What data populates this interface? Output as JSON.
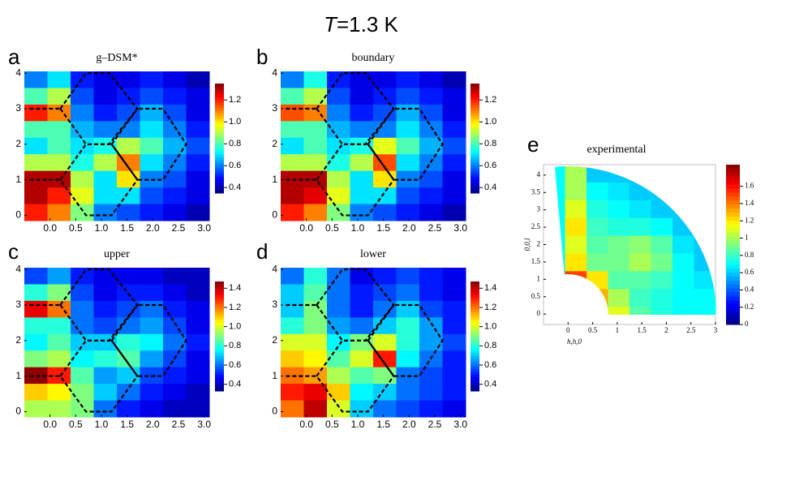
{
  "figure_title": {
    "italic": "T",
    "text": "=1.3 K"
  },
  "chart_data": [
    {
      "type": "heatmap",
      "label": "a",
      "title": "g–DSM*",
      "xlim": [
        -0.5,
        3.1
      ],
      "ylim": [
        -0.15,
        4.05
      ],
      "zlim": [
        0.35,
        1.35
      ],
      "xticks": [
        {
          "value": 0,
          "label": "0.0"
        },
        0.5,
        {
          "value": 1,
          "label": "1.0"
        },
        1.5,
        {
          "value": 2,
          "label": "2.0"
        },
        2.5,
        {
          "value": 3,
          "label": "3.0"
        }
      ],
      "yticks": [
        0,
        1,
        2,
        3,
        4
      ],
      "zticks": [
        0.4,
        0.6,
        0.8,
        {
          "value": 1,
          "label": "1.0"
        },
        1.2
      ],
      "z": [
        [
          0.6,
          0.7,
          0.5,
          0.45,
          0.45,
          0.5,
          0.45,
          0.4
        ],
        [
          0.8,
          0.9,
          0.55,
          0.45,
          0.5,
          0.55,
          0.5,
          0.45
        ],
        [
          1.2,
          1.1,
          0.6,
          0.5,
          0.55,
          0.65,
          0.55,
          0.45
        ],
        [
          0.8,
          0.8,
          0.65,
          0.6,
          0.6,
          0.7,
          0.6,
          0.5
        ],
        [
          0.7,
          0.8,
          0.7,
          0.75,
          0.9,
          0.8,
          0.65,
          0.55
        ],
        [
          0.9,
          0.9,
          0.75,
          0.9,
          1.1,
          0.7,
          0.6,
          0.5
        ],
        [
          1.3,
          1.3,
          0.9,
          0.7,
          1.0,
          0.6,
          0.55,
          0.45
        ],
        [
          1.3,
          1.2,
          0.95,
          0.7,
          0.7,
          0.55,
          0.5,
          0.45
        ],
        [
          1.2,
          1.1,
          0.85,
          0.6,
          0.55,
          0.5,
          0.45,
          0.4
        ]
      ]
    },
    {
      "type": "heatmap",
      "label": "b",
      "title": "boundary",
      "xlim": [
        -0.5,
        3.1
      ],
      "ylim": [
        -0.15,
        4.05
      ],
      "zlim": [
        0.35,
        1.35
      ],
      "xticks": [
        {
          "value": 0,
          "label": "0.0"
        },
        0.5,
        {
          "value": 1,
          "label": "1.0"
        },
        1.5,
        {
          "value": 2,
          "label": "2.0"
        },
        2.5,
        {
          "value": 3,
          "label": "3.0"
        }
      ],
      "yticks": [
        0,
        1,
        2,
        3,
        4
      ],
      "zticks": [
        0.4,
        0.6,
        0.8,
        {
          "value": 1,
          "label": "1.0"
        },
        1.2
      ],
      "z": [
        [
          0.6,
          0.75,
          0.5,
          0.45,
          0.45,
          0.5,
          0.45,
          0.4
        ],
        [
          0.8,
          0.9,
          0.55,
          0.45,
          0.5,
          0.55,
          0.5,
          0.45
        ],
        [
          1.15,
          1.1,
          0.6,
          0.5,
          0.55,
          0.65,
          0.55,
          0.45
        ],
        [
          0.8,
          0.8,
          0.65,
          0.6,
          0.6,
          0.7,
          0.6,
          0.5
        ],
        [
          0.7,
          0.8,
          0.7,
          0.75,
          0.95,
          0.8,
          0.65,
          0.55
        ],
        [
          0.9,
          0.9,
          0.75,
          0.9,
          1.15,
          0.7,
          0.6,
          0.5
        ],
        [
          1.3,
          1.3,
          0.9,
          0.7,
          1.0,
          0.6,
          0.55,
          0.45
        ],
        [
          1.3,
          1.25,
          0.95,
          0.7,
          0.7,
          0.55,
          0.5,
          0.45
        ],
        [
          1.2,
          1.1,
          0.85,
          0.6,
          0.55,
          0.5,
          0.45,
          0.4
        ]
      ]
    },
    {
      "type": "heatmap",
      "label": "c",
      "title": "upper",
      "xlim": [
        -0.5,
        3.1
      ],
      "ylim": [
        -0.15,
        4.05
      ],
      "zlim": [
        0.33,
        1.47
      ],
      "xticks": [
        {
          "value": 0,
          "label": "0.0"
        },
        0.5,
        {
          "value": 1,
          "label": "1.0"
        },
        1.5,
        {
          "value": 2,
          "label": "2.0"
        },
        2.5,
        {
          "value": 3,
          "label": "3.0"
        }
      ],
      "yticks": [
        0,
        1,
        2,
        3,
        4
      ],
      "zticks": [
        0.4,
        0.6,
        0.8,
        {
          "value": 1,
          "label": "1.0"
        },
        1.2,
        1.4
      ],
      "z": [
        [
          0.55,
          0.65,
          0.5,
          0.45,
          0.45,
          0.45,
          0.4,
          0.4
        ],
        [
          0.8,
          0.9,
          0.55,
          0.45,
          0.5,
          0.5,
          0.45,
          0.4
        ],
        [
          1.35,
          1.2,
          0.6,
          0.5,
          0.55,
          0.6,
          0.5,
          0.45
        ],
        [
          0.8,
          0.8,
          0.6,
          0.55,
          0.6,
          0.65,
          0.55,
          0.45
        ],
        [
          0.75,
          0.85,
          0.7,
          0.7,
          0.8,
          0.75,
          0.6,
          0.5
        ],
        [
          0.9,
          0.95,
          0.75,
          0.8,
          0.85,
          0.65,
          0.55,
          0.45
        ],
        [
          1.45,
          1.3,
          0.85,
          0.65,
          0.7,
          0.55,
          0.5,
          0.45
        ],
        [
          1.1,
          1.05,
          0.9,
          0.7,
          0.6,
          0.5,
          0.45,
          0.4
        ],
        [
          0.95,
          0.95,
          0.9,
          0.6,
          0.5,
          0.45,
          0.4,
          0.4
        ]
      ]
    },
    {
      "type": "heatmap",
      "label": "d",
      "title": "lower",
      "xlim": [
        -0.5,
        3.1
      ],
      "ylim": [
        -0.15,
        4.05
      ],
      "zlim": [
        0.33,
        1.47
      ],
      "xticks": [
        {
          "value": 0,
          "label": "0.0"
        },
        0.5,
        {
          "value": 1,
          "label": "1.0"
        },
        1.5,
        {
          "value": 2,
          "label": "2.0"
        },
        2.5,
        {
          "value": 3,
          "label": "3.0"
        }
      ],
      "yticks": [
        0,
        1,
        2,
        3,
        4
      ],
      "zticks": [
        0.4,
        0.6,
        0.8,
        {
          "value": 1,
          "label": "1.0"
        },
        1.2,
        1.4
      ],
      "z": [
        [
          0.6,
          0.8,
          0.6,
          0.45,
          0.5,
          0.55,
          0.5,
          0.45
        ],
        [
          0.7,
          0.85,
          0.6,
          0.5,
          0.55,
          0.6,
          0.5,
          0.45
        ],
        [
          0.7,
          0.9,
          0.6,
          0.5,
          0.6,
          0.7,
          0.55,
          0.5
        ],
        [
          0.8,
          0.9,
          0.65,
          0.6,
          0.7,
          0.8,
          0.65,
          0.5
        ],
        [
          1.0,
          1.0,
          0.75,
          0.9,
          1.0,
          0.8,
          0.65,
          0.55
        ],
        [
          1.1,
          1.05,
          0.85,
          1.0,
          1.3,
          0.75,
          0.6,
          0.5
        ],
        [
          1.2,
          1.15,
          0.95,
          0.85,
          0.9,
          0.6,
          0.55,
          0.5
        ],
        [
          1.3,
          1.35,
          1.1,
          0.75,
          0.7,
          0.6,
          0.55,
          0.5
        ],
        [
          1.2,
          1.4,
          1.0,
          0.7,
          0.6,
          0.55,
          0.5,
          0.45
        ]
      ]
    },
    {
      "type": "heatmap",
      "label": "e",
      "title": "experimental",
      "wedge": true,
      "xlabel": "h,h,0",
      "ylabel": "0,0,l",
      "xlim": [
        -0.5,
        3
      ],
      "ylim": [
        -0.3,
        4.3
      ],
      "zlim": [
        0,
        1.85
      ],
      "xticks": [
        0,
        0.5,
        1,
        1.5,
        2,
        2.5,
        3
      ],
      "yticks": [
        0,
        0.5,
        1,
        1.5,
        2,
        2.5,
        3,
        3.5,
        4
      ],
      "zticks": [
        0,
        0.2,
        0.4,
        0.6,
        0.8,
        1,
        1.2,
        1.4,
        1.6
      ],
      "z": [
        [
          0.7,
          1.0,
          0.6,
          0.6,
          0.6,
          0.6,
          0.6,
          0.6
        ],
        [
          0.7,
          1.0,
          0.7,
          0.65,
          0.6,
          0.6,
          0.6,
          0.6
        ],
        [
          0.7,
          1.1,
          0.75,
          0.7,
          0.65,
          0.6,
          0.6,
          0.6
        ],
        [
          0.7,
          1.2,
          0.8,
          0.75,
          0.75,
          0.7,
          0.6,
          0.6
        ],
        [
          0.7,
          1.1,
          0.85,
          0.9,
          0.95,
          0.85,
          0.65,
          0.6
        ],
        [
          0.7,
          1.2,
          0.9,
          0.9,
          1.0,
          0.9,
          0.7,
          0.6
        ],
        [
          0.7,
          1.5,
          1.2,
          0.85,
          0.85,
          0.8,
          0.7,
          0.65
        ],
        [
          0.7,
          0.7,
          1.3,
          1.0,
          0.8,
          0.75,
          0.7,
          0.7
        ],
        [
          0.7,
          0.7,
          1.4,
          1.1,
          0.85,
          0.75,
          0.7,
          0.7
        ]
      ]
    }
  ]
}
